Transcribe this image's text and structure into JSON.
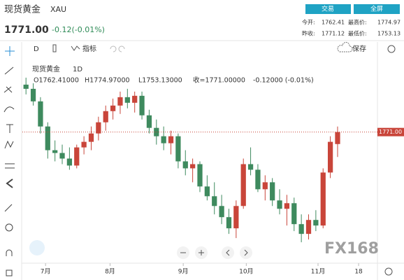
{
  "header": {
    "name": "现货黄金",
    "symbol": "XAU",
    "price": "1771.00",
    "change": "-0.12(-0.01%)",
    "buttons": [
      "交易",
      "全屏"
    ],
    "stats": [
      {
        "label": "今开:",
        "value": "1762.41"
      },
      {
        "label": "最高价:",
        "value": "1774.97"
      },
      {
        "label": "昨收:",
        "value": "1771.12"
      },
      {
        "label": "最低价:",
        "value": "1753.13"
      }
    ]
  },
  "toolbar": {
    "interval": "D",
    "indicators": "指标",
    "save": "保存"
  },
  "legend": {
    "name": "现货黄金",
    "interval": "1D",
    "ohlc": [
      "O1762.41000",
      "H1774.97000",
      "L1753.13000",
      "收=1771.00000",
      "-0.12000 (-0.01%)"
    ]
  },
  "watermark": "FX168",
  "chart_data": {
    "type": "candlestick",
    "up_color": "#c9453a",
    "down_color": "#3e8a5e",
    "grid": false,
    "categories": [
      null,
      null,
      null,
      null,
      null,
      null,
      null,
      null,
      null,
      null,
      null,
      null,
      null,
      null,
      null,
      null,
      null,
      null,
      null,
      null,
      null,
      null,
      null,
      null,
      null,
      null,
      null,
      null,
      null,
      null,
      null,
      null,
      null,
      null,
      null,
      null,
      null,
      null,
      null,
      null,
      null,
      null,
      null,
      null
    ],
    "open": [
      1805,
      1802,
      1793,
      1775,
      1758,
      1756,
      1752,
      1747,
      1760,
      1764,
      1770,
      1778,
      1786,
      1790,
      1796,
      1792,
      1797,
      1783,
      1774,
      1768,
      1763,
      1768,
      1750,
      1745,
      1748,
      1732,
      1725,
      1718,
      1710,
      1702,
      1718,
      1748,
      1744,
      1730,
      1735,
      1722,
      1716,
      1720,
      1705,
      1698,
      1708,
      1704,
      1742,
      1762.41
    ],
    "high": [
      1810,
      1806,
      1796,
      1778,
      1765,
      1762,
      1760,
      1762,
      1768,
      1775,
      1782,
      1790,
      1795,
      1800,
      1802,
      1800,
      1800,
      1787,
      1780,
      1775,
      1772,
      1770,
      1758,
      1752,
      1750,
      1740,
      1735,
      1726,
      1716,
      1722,
      1752,
      1760,
      1748,
      1740,
      1738,
      1730,
      1726,
      1724,
      1712,
      1712,
      1715,
      1745,
      1768,
      1774.97
    ],
    "low": [
      1798,
      1790,
      1770,
      1752,
      1750,
      1748,
      1744,
      1745,
      1755,
      1758,
      1765,
      1772,
      1780,
      1784,
      1788,
      1785,
      1780,
      1770,
      1762,
      1758,
      1755,
      1745,
      1740,
      1735,
      1728,
      1722,
      1712,
      1705,
      1698,
      1695,
      1716,
      1740,
      1728,
      1722,
      1718,
      1712,
      1704,
      1700,
      1692,
      1694,
      1700,
      1702,
      1738,
      1753.13
    ],
    "close": [
      1802,
      1793,
      1775,
      1758,
      1756,
      1752,
      1747,
      1760,
      1764,
      1770,
      1778,
      1786,
      1790,
      1796,
      1792,
      1797,
      1783,
      1774,
      1768,
      1763,
      1768,
      1750,
      1745,
      1748,
      1732,
      1725,
      1718,
      1710,
      1702,
      1718,
      1748,
      1744,
      1730,
      1735,
      1722,
      1716,
      1720,
      1705,
      1698,
      1708,
      1704,
      1742,
      1764,
      1771.0
    ],
    "ylim": [
      1680,
      1818
    ],
    "xlim": [
      -0.5,
      48.5
    ],
    "xticks": [
      {
        "value": 2.7,
        "label": "7月"
      },
      {
        "value": 11.6,
        "label": "8月"
      },
      {
        "value": 21.7,
        "label": "9月"
      },
      {
        "value": 30.4,
        "label": "10月"
      },
      {
        "value": 40.3,
        "label": "11月"
      },
      {
        "value": 45.9,
        "label": "18"
      }
    ],
    "price_line": {
      "value": 1771,
      "label": "1771.00"
    }
  }
}
